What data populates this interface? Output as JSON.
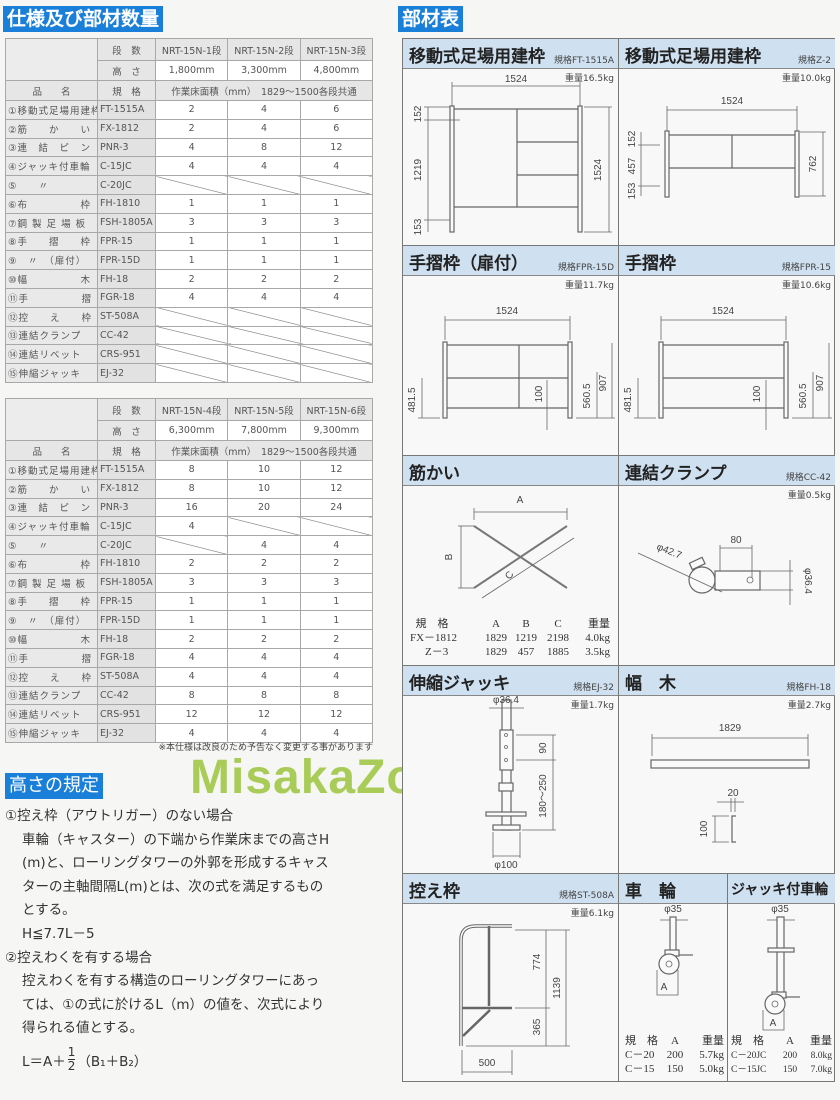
{
  "left": {
    "title": "仕様及び部材数量",
    "tables": [
      {
        "dansu_label": "段　数",
        "takasa_label": "高　さ",
        "models": [
          "NRT-15N-1段",
          "NRT-15N-2段",
          "NRT-15N-3段"
        ],
        "heights": [
          "1,800mm",
          "3,300mm",
          "4,800mm"
        ],
        "name_label": "品　　名",
        "spec_label": "規　格",
        "area_note": "作業床面積（mm）　1829～1500各段共通",
        "rows": [
          {
            "name": "①移動式足場用建枠",
            "spec": "FT-1515A",
            "qty": [
              "2",
              "4",
              "6"
            ]
          },
          {
            "name": "②筋　　か　　い",
            "spec": "FX-1812",
            "qty": [
              "2",
              "4",
              "6"
            ]
          },
          {
            "name": "③連　結　ピ　ン",
            "spec": "PNR-3",
            "qty": [
              "4",
              "8",
              "12"
            ]
          },
          {
            "name": "④ジャッキ付車輪",
            "spec": "C-15JC",
            "qty": [
              "4",
              "4",
              "4"
            ]
          },
          {
            "name": "⑤　　〃",
            "spec": "C-20JC",
            "qty": [
              null,
              null,
              null
            ]
          },
          {
            "name": "⑥布　　　　　枠",
            "spec": "FH-1810",
            "qty": [
              "1",
              "1",
              "1"
            ]
          },
          {
            "name": "⑦鋼 製 足 場 板",
            "spec": "FSH-1805A",
            "qty": [
              "3",
              "3",
              "3"
            ]
          },
          {
            "name": "⑧手　　摺　　枠",
            "spec": "FPR-15",
            "qty": [
              "1",
              "1",
              "1"
            ]
          },
          {
            "name": "⑨　〃　（扉付）",
            "spec": "FPR-15D",
            "qty": [
              "1",
              "1",
              "1"
            ]
          },
          {
            "name": "⑩幅　　　　　木",
            "spec": "FH-18",
            "qty": [
              "2",
              "2",
              "2"
            ]
          },
          {
            "name": "⑪手　　　　　摺",
            "spec": "FGR-18",
            "qty": [
              "4",
              "4",
              "4"
            ]
          },
          {
            "name": "⑫控　　え　　枠",
            "spec": "ST-508A",
            "qty": [
              null,
              null,
              null
            ]
          },
          {
            "name": "⑬連結クランプ",
            "spec": "CC-42",
            "qty": [
              null,
              null,
              null
            ]
          },
          {
            "name": "⑭連結リベット",
            "spec": "CRS-951",
            "qty": [
              null,
              null,
              null
            ]
          },
          {
            "name": "⑮伸縮ジャッキ",
            "spec": "EJ-32",
            "qty": [
              null,
              null,
              null
            ]
          }
        ]
      },
      {
        "dansu_label": "段　数",
        "takasa_label": "高　さ",
        "models": [
          "NRT-15N-4段",
          "NRT-15N-5段",
          "NRT-15N-6段"
        ],
        "heights": [
          "6,300mm",
          "7,800mm",
          "9,300mm"
        ],
        "name_label": "品　　名",
        "spec_label": "規　格",
        "area_note": "作業床面積（mm）　1829～1500各段共通",
        "rows": [
          {
            "name": "①移動式足場用建枠",
            "spec": "FT-1515A",
            "qty": [
              "8",
              "10",
              "12"
            ]
          },
          {
            "name": "②筋　　か　　い",
            "spec": "FX-1812",
            "qty": [
              "8",
              "10",
              "12"
            ]
          },
          {
            "name": "③連　結　ピ　ン",
            "spec": "PNR-3",
            "qty": [
              "16",
              "20",
              "24"
            ]
          },
          {
            "name": "④ジャッキ付車輪",
            "spec": "C-15JC",
            "qty": [
              "4",
              null,
              null
            ]
          },
          {
            "name": "⑤　　〃",
            "spec": "C-20JC",
            "qty": [
              null,
              "4",
              "4"
            ]
          },
          {
            "name": "⑥布　　　　　枠",
            "spec": "FH-1810",
            "qty": [
              "2",
              "2",
              "2"
            ]
          },
          {
            "name": "⑦鋼 製 足 場 板",
            "spec": "FSH-1805A",
            "qty": [
              "3",
              "3",
              "3"
            ]
          },
          {
            "name": "⑧手　　摺　　枠",
            "spec": "FPR-15",
            "qty": [
              "1",
              "1",
              "1"
            ]
          },
          {
            "name": "⑨　〃　（扉付）",
            "spec": "FPR-15D",
            "qty": [
              "1",
              "1",
              "1"
            ]
          },
          {
            "name": "⑩幅　　　　　木",
            "spec": "FH-18",
            "qty": [
              "2",
              "2",
              "2"
            ]
          },
          {
            "name": "⑪手　　　　　摺",
            "spec": "FGR-18",
            "qty": [
              "4",
              "4",
              "4"
            ]
          },
          {
            "name": "⑫控　　え　　枠",
            "spec": "ST-508A",
            "qty": [
              "4",
              "4",
              "4"
            ]
          },
          {
            "name": "⑬連結クランプ",
            "spec": "CC-42",
            "qty": [
              "8",
              "8",
              "8"
            ]
          },
          {
            "name": "⑭連結リベット",
            "spec": "CRS-951",
            "qty": [
              "12",
              "12",
              "12"
            ]
          },
          {
            "name": "⑮伸縮ジャッキ",
            "spec": "EJ-32",
            "qty": [
              "4",
              "4",
              "4"
            ]
          }
        ]
      }
    ],
    "note": "※本仕様は改良のため予告なく変更する事があります"
  },
  "rules": {
    "title": "高さの規定",
    "lines": [
      "①控え枠（アウトリガー）のない場合",
      "車輪（キャスター）の下端から作業床までの高さH",
      "(m)と、ローリングタワーの外郭を形成するキャス",
      "ターの主軸間隔L(m)とは、次の式を満足するもの",
      "とする。",
      "H≦7.7L－5",
      "②控えわくを有する場合",
      "控えわくを有する構造のローリングタワーにあっ",
      "ては、①の式に於けるL（m）の値を、次式により",
      "得られる値とする。"
    ],
    "formula": {
      "lhs": "L＝A＋",
      "num": "1",
      "den": "2",
      "rhs": "（B₁＋B₂）"
    }
  },
  "watermark": "MisakaZoo",
  "parts": {
    "title": "部材表",
    "panels": [
      {
        "title": "移動式足場用建枠",
        "spec": "規格FT-1515A",
        "weight": "重量16.5kg",
        "dims": [
          "1524",
          "152",
          "1219",
          "153",
          "1524"
        ]
      },
      {
        "title": "移動式足場用建枠",
        "spec": "規格Z-2",
        "weight": "重量10.0kg",
        "dims": [
          "1524",
          "152",
          "457",
          "153",
          "762"
        ]
      },
      {
        "title": "手摺枠（扉付）",
        "spec": "規格FPR-15D",
        "weight": "重量11.7kg",
        "dims": [
          "1524",
          "481.5",
          "100",
          "560.5",
          "907"
        ]
      },
      {
        "title": "手摺枠",
        "spec": "規格FPR-15",
        "weight": "重量10.6kg",
        "dims": [
          "1524",
          "481.5",
          "100",
          "560.5",
          "907"
        ]
      },
      {
        "title": "筋かい",
        "dims": [
          "A",
          "B",
          "C"
        ],
        "table": {
          "header": [
            "規　格",
            "A",
            "B",
            "C",
            "重量"
          ],
          "rows": [
            [
              "FX－1812",
              "1829",
              "1219",
              "2198",
              "4.0kg"
            ],
            [
              "Z－3",
              "1829",
              "457",
              "1885",
              "3.5kg"
            ]
          ]
        }
      },
      {
        "title": "連結クランプ",
        "spec": "規格CC-42",
        "weight": "重量0.5kg",
        "dims": [
          "φ42.7",
          "80",
          "φ36.4"
        ]
      },
      {
        "title": "伸縮ジャッキ",
        "spec": "規格EJ-32",
        "weight": "重量1.7kg",
        "dims": [
          "φ36.4",
          "90",
          "180～250",
          "φ100"
        ]
      },
      {
        "title": "幅　木",
        "spec": "規格FH-18",
        "weight": "重量2.7kg",
        "dims": [
          "1829",
          "20",
          "100"
        ]
      },
      {
        "title": "控え枠",
        "spec": "規格ST-508A",
        "weight": "重量6.1kg",
        "dims": [
          "774",
          "1139",
          "365",
          "500"
        ]
      },
      {
        "title": "車　輪",
        "dims": [
          "φ35",
          "A"
        ],
        "table": {
          "header": [
            "規　格",
            "A",
            "重量"
          ],
          "rows": [
            [
              "C－20",
              "200",
              "5.7kg"
            ],
            [
              "C－15",
              "150",
              "5.0kg"
            ]
          ]
        }
      },
      {
        "title": "ジャッキ付車輪",
        "dims": [
          "φ35",
          "A"
        ],
        "table": {
          "header": [
            "規　格",
            "A",
            "重量"
          ],
          "rows": [
            [
              "C－20JC",
              "200",
              "8.0kg"
            ],
            [
              "C－15JC",
              "150",
              "7.0kg"
            ]
          ]
        }
      }
    ]
  }
}
